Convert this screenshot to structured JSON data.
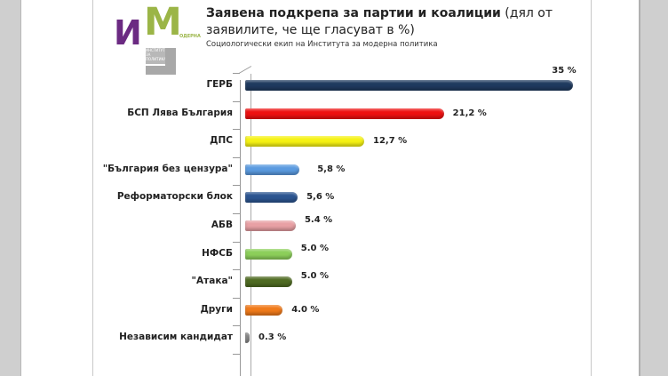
{
  "header": {
    "title_bold": "Заявена подкрепа за партии и коалиции",
    "title_rest": " (дял от заявилите, че ще гласуват в %)",
    "subtitle": "Социологически екип на Института за модерна политика"
  },
  "logo": {
    "letter_i": "И",
    "letter_m": "M",
    "sub": "ОДЕРНА",
    "l_text": "ИНСТИТУТ ЗА ПОЛИТИКА",
    "colors": {
      "purple": "#6b2a82",
      "green": "#9bb547",
      "gray": "#a8a8a8"
    }
  },
  "chart_data": {
    "type": "bar",
    "orientation": "horizontal",
    "title": "Заявена подкрепа за партии и коалиции (дял от заявилите, че ще гласуват в %)",
    "subtitle": "Социологически екип на Института за модерна политика",
    "xlabel": "",
    "ylabel": "",
    "categories": [
      "ГЕРБ",
      "БСП Лява България",
      "ДПС",
      "\"България без цензура\"",
      "Реформаторски блок",
      "АБВ",
      "НФСБ",
      "\"Атака\"",
      "Други",
      "Независим кандидат"
    ],
    "values": [
      35,
      21.2,
      12.7,
      5.8,
      5.6,
      5.4,
      5.0,
      5.0,
      4.0,
      0.3
    ],
    "value_labels": [
      "35 %",
      "21,2 %",
      "12,7 %",
      "5,8  %",
      "5,6 %",
      "5.4 %",
      "5.0 %",
      "5.0 %",
      "4.0 %",
      "0.3 %"
    ],
    "colors": [
      "#1f3a5f",
      "#ee1111",
      "#f5f214",
      "#5b9be0",
      "#2c5591",
      "#e8a0a4",
      "#8ccf5a",
      "#4f6b22",
      "#f07a1a",
      "#888888"
    ],
    "grid": false,
    "legend": null,
    "xlim": [
      0,
      35
    ]
  }
}
